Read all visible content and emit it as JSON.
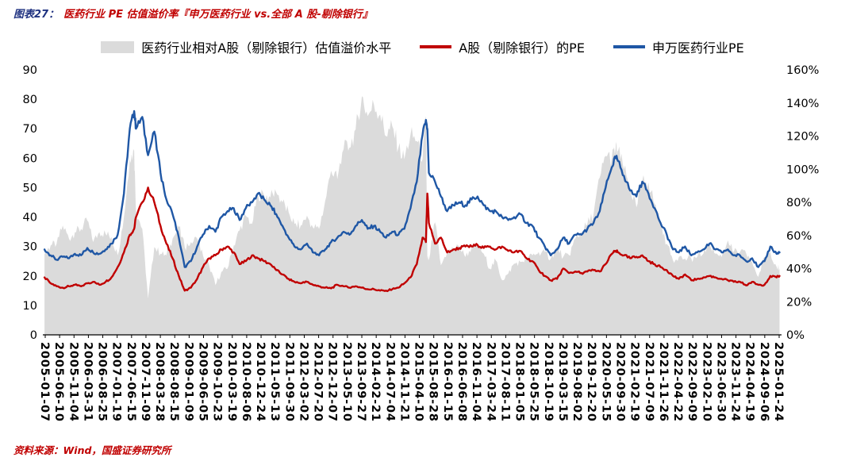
{
  "header": {
    "label": "图表27：",
    "title": "医药行业 PE 估值溢价率『申万医药行业 vs.全部 A 股-剔除银行』"
  },
  "footer": {
    "source": "资料来源：Wind，国盛证券研究所"
  },
  "colors": {
    "premium_fill": "#dbdbdb",
    "a_share_pe": "#c00000",
    "pharma_pe": "#1f57a5",
    "title_label": "#1f3280",
    "title_text": "#c00000",
    "source_text": "#c00000",
    "axis_line": "#000000"
  },
  "chart_data": {
    "type": "line+area",
    "title": "医药行业 PE 估值溢价率『申万医药行业 vs.全部 A 股-剔除银行』",
    "legend": [
      {
        "label": "医药行业相对A股（剔除银行）估值溢价水平",
        "type": "area",
        "color": "#dbdbdb",
        "axis": "right"
      },
      {
        "label": "A股（剔除银行）的PE",
        "type": "line",
        "color": "#c00000",
        "axis": "left"
      },
      {
        "label": "申万医药行业PE",
        "type": "line",
        "color": "#1f57a5",
        "axis": "left"
      }
    ],
    "left_axis": {
      "min": 0,
      "max": 90,
      "ticks": [
        0,
        10,
        20,
        30,
        40,
        50,
        60,
        70,
        80,
        90
      ]
    },
    "right_axis": {
      "min": 0,
      "max": 160,
      "tick_step": 20,
      "ticks": [
        "0%",
        "20%",
        "40%",
        "60%",
        "80%",
        "100%",
        "120%",
        "140%",
        "160%"
      ]
    },
    "grid": false,
    "legend_position": "top",
    "x_domain": [
      2005.02,
      2025.07
    ],
    "x_tick_labels": [
      "2005-01-07",
      "2005-06-10",
      "2005-11-04",
      "2006-03-31",
      "2006-08-25",
      "2007-01-19",
      "2007-06-15",
      "2007-11-09",
      "2008-03-28",
      "2008-08-15",
      "2009-01-09",
      "2009-06-05",
      "2009-10-23",
      "2010-03-19",
      "2010-08-06",
      "2010-12-24",
      "2011-05-13",
      "2011-09-30",
      "2012-03-02",
      "2012-07-20",
      "2012-12-07",
      "2013-05-10",
      "2013-09-27",
      "2014-02-21",
      "2014-07-04",
      "2014-11-21",
      "2015-04-10",
      "2015-08-28",
      "2016-01-15",
      "2016-06-08",
      "2016-11-04",
      "2017-03-24",
      "2017-08-11",
      "2018-01-05",
      "2018-05-25",
      "2018-10-19",
      "2019-03-15",
      "2019-08-02",
      "2019-12-20",
      "2020-05-15",
      "2020-09-30",
      "2021-02-19",
      "2021-07-09",
      "2021-11-26",
      "2022-04-22",
      "2022-09-09",
      "2023-02-10",
      "2023-06-30",
      "2023-11-24",
      "2024-04-19",
      "2024-09-06",
      "2025-01-24"
    ],
    "series": {
      "x": [
        2005.0,
        2005.17,
        2005.33,
        2005.5,
        2005.67,
        2005.83,
        2006.0,
        2006.17,
        2006.33,
        2006.5,
        2006.67,
        2006.83,
        2007.0,
        2007.17,
        2007.33,
        2007.45,
        2007.5,
        2007.67,
        2007.83,
        2008.0,
        2008.17,
        2008.33,
        2008.5,
        2008.67,
        2008.83,
        2009.0,
        2009.17,
        2009.33,
        2009.5,
        2009.67,
        2009.83,
        2010.0,
        2010.17,
        2010.33,
        2010.5,
        2010.67,
        2010.83,
        2011.0,
        2011.17,
        2011.33,
        2011.5,
        2011.67,
        2011.83,
        2012.0,
        2012.17,
        2012.33,
        2012.5,
        2012.67,
        2012.83,
        2013.0,
        2013.17,
        2013.33,
        2013.5,
        2013.67,
        2013.83,
        2014.0,
        2014.17,
        2014.33,
        2014.5,
        2014.67,
        2014.83,
        2015.0,
        2015.17,
        2015.33,
        2015.42,
        2015.46,
        2015.5,
        2015.67,
        2015.83,
        2016.0,
        2016.17,
        2016.33,
        2016.5,
        2016.67,
        2016.83,
        2017.0,
        2017.17,
        2017.33,
        2017.5,
        2017.67,
        2017.83,
        2018.0,
        2018.17,
        2018.33,
        2018.5,
        2018.67,
        2018.83,
        2019.0,
        2019.17,
        2019.33,
        2019.5,
        2019.67,
        2019.83,
        2020.0,
        2020.17,
        2020.33,
        2020.5,
        2020.6,
        2020.67,
        2020.83,
        2021.0,
        2021.17,
        2021.33,
        2021.5,
        2021.67,
        2021.83,
        2022.0,
        2022.17,
        2022.33,
        2022.5,
        2022.67,
        2022.83,
        2023.0,
        2023.17,
        2023.33,
        2023.5,
        2023.67,
        2023.83,
        2024.0,
        2024.17,
        2024.33,
        2024.5,
        2024.67,
        2024.83,
        2025.0,
        2025.08
      ],
      "pharma_pe": [
        29,
        27,
        25.5,
        26.5,
        26,
        27.5,
        27,
        29.5,
        28,
        27.5,
        29,
        31,
        34,
        48,
        70,
        76,
        70,
        74,
        61,
        69,
        55,
        46,
        41,
        33,
        23,
        25,
        30,
        34,
        37,
        35,
        40,
        42,
        43,
        39,
        43,
        45,
        48,
        46,
        44,
        41,
        37,
        33,
        30,
        29,
        31,
        28,
        27,
        29,
        31.5,
        33,
        35,
        34,
        37,
        39,
        36,
        37,
        35,
        33,
        35,
        34,
        36,
        43,
        52,
        68,
        73,
        70,
        55,
        52,
        47,
        42,
        44,
        45,
        44,
        46,
        47,
        44,
        42,
        42,
        40,
        39,
        40,
        41,
        38,
        37,
        33,
        30,
        27,
        29,
        33,
        31,
        34,
        34,
        36,
        38,
        42,
        50,
        57,
        60.5,
        59,
        54,
        49,
        47,
        52,
        48,
        43,
        38,
        34,
        29,
        28,
        30,
        27,
        28,
        29,
        31,
        29,
        28,
        29,
        27,
        27,
        25,
        26,
        23,
        25,
        30,
        27.5,
        28
      ],
      "a_share_pe": [
        19.5,
        17.5,
        16.5,
        16,
        16.5,
        17,
        16.5,
        17.5,
        18,
        17,
        18,
        19.5,
        23,
        28,
        34,
        36,
        40,
        45,
        50,
        45,
        37,
        31,
        26,
        20,
        15,
        16,
        19,
        23,
        26,
        27,
        29,
        30,
        28,
        24,
        25,
        27,
        26,
        25,
        24,
        22,
        20.5,
        19,
        18,
        17.5,
        18,
        17,
        16.5,
        16,
        15.8,
        17,
        16.5,
        16,
        16.5,
        16,
        15.5,
        15.5,
        15,
        15,
        15.5,
        16,
        17.5,
        19.5,
        24,
        33,
        31.5,
        48,
        38,
        31,
        33,
        28,
        29,
        29.5,
        30,
        30,
        30.5,
        29.5,
        30,
        29,
        30,
        28.5,
        28,
        28.5,
        26,
        25,
        22,
        20,
        18.5,
        19,
        22.5,
        21,
        21.5,
        21,
        21.5,
        22,
        21.5,
        24,
        27.5,
        28.5,
        28,
        27,
        26,
        26.5,
        27,
        25,
        24,
        23,
        22,
        20,
        19,
        20.5,
        18.5,
        19,
        19.5,
        20,
        19.5,
        19,
        18.5,
        18,
        18,
        16.8,
        18,
        17,
        17,
        20,
        19.5,
        20
      ],
      "premium_pct": [
        49,
        54,
        55,
        66,
        58,
        62,
        64,
        69,
        56,
        62,
        61,
        59,
        48,
        71,
        106,
        111,
        75,
        64,
        22,
        53,
        49,
        48,
        58,
        65,
        53,
        56,
        58,
        48,
        42,
        30,
        38,
        40,
        54,
        63,
        72,
        67,
        85,
        84,
        83,
        86,
        80,
        74,
        67,
        66,
        72,
        65,
        64,
        81,
        99,
        94,
        112,
        113,
        124,
        144,
        132,
        139,
        133,
        120,
        126,
        113,
        106,
        121,
        117,
        106,
        132,
        46,
        45,
        68,
        42,
        50,
        52,
        53,
        47,
        53,
        54,
        49,
        40,
        45,
        33,
        37,
        43,
        44,
        46,
        48,
        50,
        50,
        46,
        53,
        47,
        48,
        58,
        62,
        67,
        73,
        95,
        108,
        107,
        112,
        111,
        100,
        88,
        77,
        93,
        92,
        79,
        65,
        55,
        45,
        47,
        46,
        46,
        47,
        49,
        55,
        49,
        47,
        57,
        50,
        50,
        49,
        44,
        35,
        47,
        50,
        41,
        40
      ]
    }
  }
}
